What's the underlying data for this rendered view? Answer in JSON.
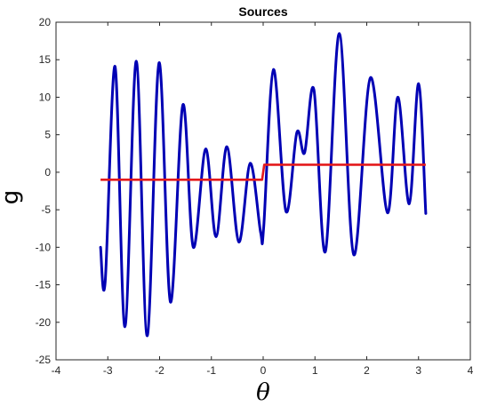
{
  "chart_data": {
    "type": "line",
    "title": "Sources",
    "xlabel": "θ",
    "ylabel": "g",
    "xlim": [
      -4,
      4
    ],
    "ylim": [
      -25,
      20
    ],
    "xticks": [
      "-4",
      "-3",
      "-2",
      "-1",
      "0",
      "1",
      "2",
      "3",
      "4"
    ],
    "yticks": [
      "20",
      "15",
      "10",
      "5",
      "0",
      "-5",
      "-10",
      "-15",
      "-20",
      "-25"
    ],
    "grid": false,
    "series": [
      {
        "color": "#0000b4",
        "x": [
          -3.14,
          -3.05,
          -2.86,
          -2.67,
          -2.45,
          -2.24,
          -2.01,
          -1.79,
          -1.55,
          -1.35,
          -1.11,
          -0.91,
          -0.7,
          -0.47,
          -0.25,
          -0.05,
          0.01,
          0.2,
          0.44,
          0.65,
          0.8,
          0.98,
          1.2,
          1.47,
          1.75,
          2.07,
          2.4,
          2.6,
          2.82,
          3.0,
          3.14
        ],
        "y": [
          -10.0,
          -14.6,
          14.1,
          -20.6,
          14.8,
          -21.8,
          14.6,
          -17.3,
          9.0,
          -10.0,
          3.1,
          -8.6,
          3.4,
          -9.3,
          1.2,
          -8.0,
          -7.3,
          13.7,
          -5.2,
          5.3,
          2.6,
          11.0,
          -10.6,
          18.5,
          -11.0,
          12.6,
          -5.4,
          10.0,
          -4.2,
          11.8,
          -5.5
        ]
      },
      {
        "color": "#e41a1c",
        "x": [
          -3.14,
          -0.02,
          0.02,
          3.14
        ],
        "y": [
          -1,
          -1,
          1,
          1
        ]
      }
    ]
  }
}
